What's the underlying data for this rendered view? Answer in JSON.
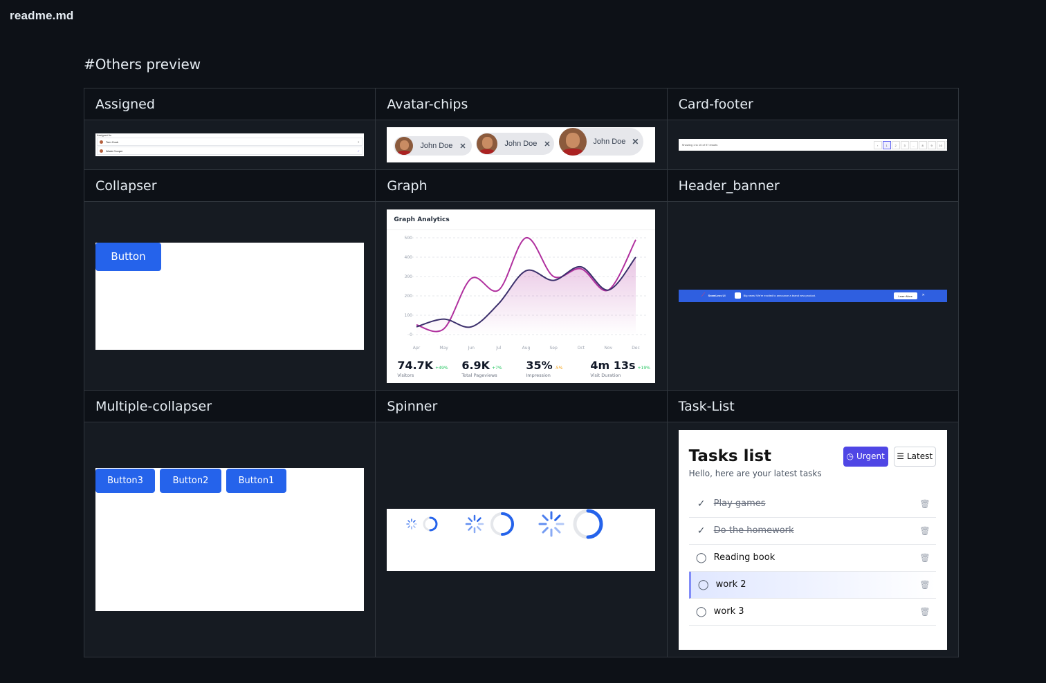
{
  "file": {
    "name": "readme.md"
  },
  "section": {
    "title": "#Others preview"
  },
  "cells": {
    "assigned": {
      "title": "Assigned",
      "header": "Assigned to",
      "rows": [
        "Tom Cook",
        "Wade Cooper"
      ],
      "chevron": "⇕",
      "check": "✓"
    },
    "avatar_chips": {
      "title": "Avatar-chips",
      "chips": [
        "John Doe",
        "John Doe",
        "John Doe"
      ],
      "close": "✕"
    },
    "card_footer": {
      "title": "Card-footer",
      "summary": "Showing 1 to 10 of 97 results",
      "pages": [
        "‹",
        "1",
        "2",
        "3",
        "...",
        "8",
        "9",
        "10",
        "›"
      ]
    },
    "collapser": {
      "title": "Collapser",
      "button": "Button"
    },
    "graph": {
      "title": "Graph",
      "heading": "Graph Analytics",
      "stats": [
        {
          "value": "74.7K",
          "delta": "+49%",
          "label": "Visitors",
          "color": "#22c55e"
        },
        {
          "value": "6.9K",
          "delta": "+7%",
          "label": "Total Pageviews",
          "color": "#22c55e"
        },
        {
          "value": "35%",
          "delta": "-5%",
          "label": "Impression",
          "color": "#f59e0b"
        },
        {
          "value": "4m 13s",
          "delta": "+19%",
          "label": "Visit Duration",
          "color": "#22c55e"
        }
      ]
    },
    "header_banner": {
      "title": "Header_banner",
      "brand": "SeamLess UI",
      "message": "Big news! We're excited to announce a brand new product.",
      "cta": "Learn More",
      "close": "✕"
    },
    "multiple_collapser": {
      "title": "Multiple-collapser",
      "buttons": [
        "Button3",
        "Button2",
        "Button1"
      ]
    },
    "spinner": {
      "title": "Spinner"
    },
    "task_list": {
      "title": "Task-List",
      "heading": "Tasks list",
      "subtitle": "Hello, here are your latest tasks",
      "urgent": "Urgent",
      "latest": "Latest",
      "tasks": [
        {
          "label": "Play games",
          "done": true
        },
        {
          "label": "Do the homework",
          "done": true
        },
        {
          "label": "Reading book",
          "done": false
        },
        {
          "label": "work 2",
          "done": false
        },
        {
          "label": "work 3",
          "done": false
        }
      ]
    }
  },
  "chart_data": {
    "type": "line",
    "title": "Graph Analytics",
    "categories": [
      "Apr",
      "May",
      "Jun",
      "Jul",
      "Aug",
      "Sep",
      "Oct",
      "Nov",
      "Dec"
    ],
    "ylim": [
      0,
      500
    ],
    "yticks": [
      0,
      100,
      200,
      300,
      400,
      500
    ],
    "grid": true,
    "series": [
      {
        "color": "#b0309e",
        "values": [
          50,
          30,
          290,
          230,
          500,
          300,
          340,
          230,
          490
        ]
      },
      {
        "color": "#3b2f6b",
        "values": [
          40,
          80,
          40,
          160,
          330,
          280,
          350,
          230,
          400
        ]
      }
    ]
  }
}
